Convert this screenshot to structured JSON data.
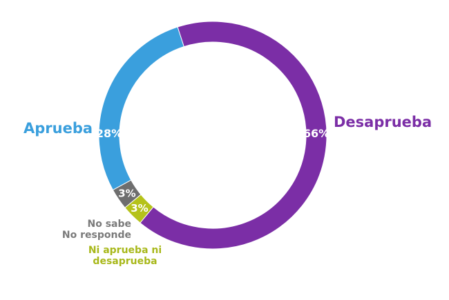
{
  "chart_data": {
    "type": "pie",
    "style": "donut",
    "slices": [
      {
        "label": "Desaprueba",
        "value": 66,
        "value_label": "66%",
        "color": "#7b2ea6"
      },
      {
        "label": "Ni aprueba ni desaprueba",
        "value": 3,
        "value_label": "3%",
        "color": "#b5c21a"
      },
      {
        "label": "No sabe No responde",
        "value": 3,
        "value_label": "3%",
        "color": "#6e6e6e"
      },
      {
        "label": "Aprueba",
        "value": 28,
        "value_label": "28%",
        "color": "#3a9fdd"
      }
    ],
    "category_labels": {
      "desaprueba": "Desaprueba",
      "aprueba": "Aprueba",
      "nosabe_line1": "No sabe",
      "nosabe_line2": "No responde",
      "ni_line1": "Ni aprueba ni",
      "ni_line2": "desaprueba"
    }
  }
}
